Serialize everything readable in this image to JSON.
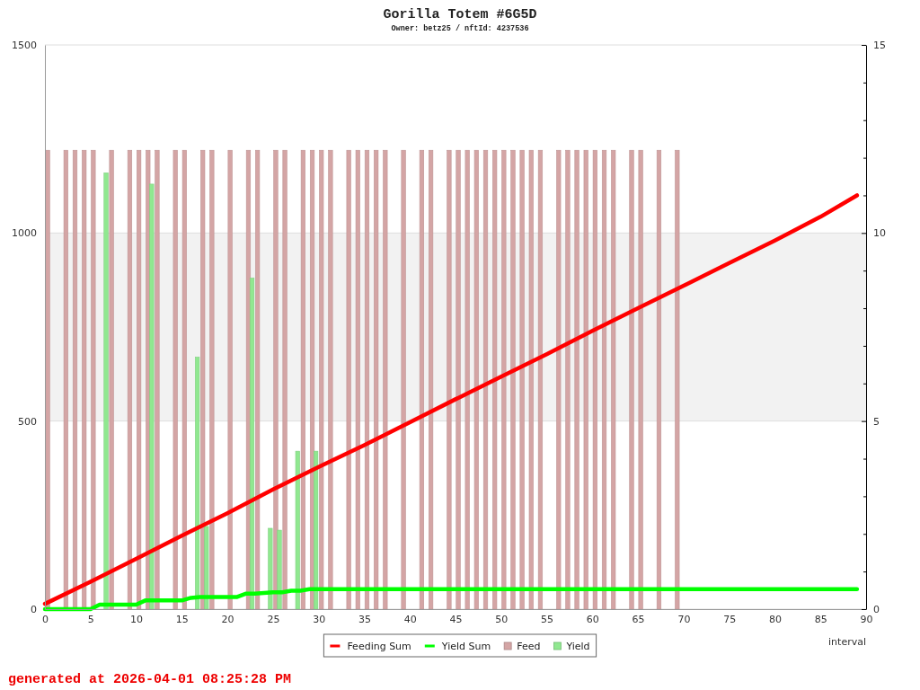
{
  "chart_data": {
    "type": "bar",
    "title": "Gorilla Totem #6G5D",
    "subtitle": "Owner: betz25 / nftId: 4237536",
    "xlabel": "interval",
    "annotations": [
      "generated at 2026-04-01 08:25:28 PM"
    ],
    "xlim": [
      0,
      90
    ],
    "xticks": [
      0,
      5,
      10,
      15,
      20,
      25,
      30,
      35,
      40,
      45,
      50,
      55,
      60,
      65,
      70,
      75,
      80,
      85,
      90
    ],
    "ylim": [
      0,
      1500
    ],
    "yticks": [
      0,
      500,
      1000,
      1500
    ],
    "y2lim": [
      0,
      15
    ],
    "y2ticks": [
      0,
      {
        "value": 1,
        "label": null
      },
      {
        "value": 2,
        "label": null
      },
      {
        "value": 3,
        "label": null
      },
      {
        "value": 4,
        "label": null
      },
      5,
      {
        "value": 6,
        "label": null
      },
      {
        "value": 7,
        "label": null
      },
      {
        "value": 8,
        "label": null
      },
      {
        "value": 9,
        "label": null
      },
      10,
      {
        "value": 11,
        "label": null
      },
      {
        "value": 12,
        "label": null
      },
      {
        "value": 13,
        "label": null
      },
      {
        "value": 14,
        "label": null
      },
      15
    ],
    "grid": "y",
    "legend": "bottom",
    "bands": [
      {
        "axis": "y",
        "from": 500,
        "to": 1000,
        "color": "#f2f2f2"
      }
    ],
    "series": [
      {
        "name": "Feeding Sum",
        "type": "line",
        "color": "#ff0000",
        "x": [
          0,
          5,
          10,
          15,
          20,
          25,
          30,
          35,
          40,
          45,
          50,
          55,
          60,
          65,
          70,
          75,
          80,
          85,
          89
        ],
        "values": [
          14,
          73,
          134,
          195,
          255,
          318,
          378,
          436,
          497,
          558,
          618,
          678,
          740,
          800,
          860,
          920,
          980,
          1043,
          1100
        ]
      },
      {
        "name": "Yield Sum",
        "type": "line",
        "color": "#00ff00",
        "x": [
          0,
          5,
          6,
          10,
          11,
          15,
          16,
          17,
          21,
          22,
          23,
          24,
          25,
          26,
          27,
          28,
          29,
          89
        ],
        "values": [
          0,
          0,
          12,
          12,
          23,
          23,
          30,
          32,
          32,
          41,
          41,
          43,
          45,
          45,
          49,
          49,
          53,
          53
        ]
      },
      {
        "name": "Feed",
        "axis": "y2",
        "color": "#d4a5a5",
        "x": [
          0.3,
          2.3,
          3.3,
          4.3,
          5.3,
          7.3,
          9.3,
          10.3,
          11.3,
          12.3,
          14.3,
          15.3,
          17.3,
          18.3,
          20.3,
          22.3,
          23.3,
          25.3,
          26.3,
          28.3,
          29.3,
          30.3,
          31.3,
          33.3,
          34.3,
          35.3,
          36.3,
          37.3,
          39.3,
          41.3,
          42.3,
          44.3,
          45.3,
          46.3,
          47.3,
          48.3,
          49.3,
          50.3,
          51.3,
          52.3,
          53.3,
          54.3,
          56.3,
          57.3,
          58.3,
          59.3,
          60.3,
          61.3,
          62.3,
          64.3,
          65.3,
          67.3,
          69.3
        ],
        "values": [
          12.2,
          12.2,
          12.2,
          12.2,
          12.2,
          12.2,
          12.2,
          12.2,
          12.2,
          12.2,
          12.2,
          12.2,
          12.2,
          12.2,
          12.2,
          12.2,
          12.2,
          12.2,
          12.2,
          12.2,
          12.2,
          12.2,
          12.2,
          12.2,
          12.2,
          12.2,
          12.2,
          12.2,
          12.2,
          12.2,
          12.2,
          12.2,
          12.2,
          12.2,
          12.2,
          12.2,
          12.2,
          12.2,
          12.2,
          12.2,
          12.2,
          12.2,
          12.2,
          12.2,
          12.2,
          12.2,
          12.2,
          12.2,
          12.2,
          12.2,
          12.2,
          12.2,
          12.2
        ]
      },
      {
        "name": "Yield",
        "axis": "y2",
        "color": "#90e890",
        "x": [
          6.7,
          11.7,
          16.7,
          17.7,
          22.7,
          24.7,
          25.7,
          27.7,
          29.7
        ],
        "values": [
          11.6,
          11.3,
          6.7,
          2.2,
          8.8,
          2.15,
          2.1,
          4.2,
          4.2
        ]
      }
    ]
  }
}
